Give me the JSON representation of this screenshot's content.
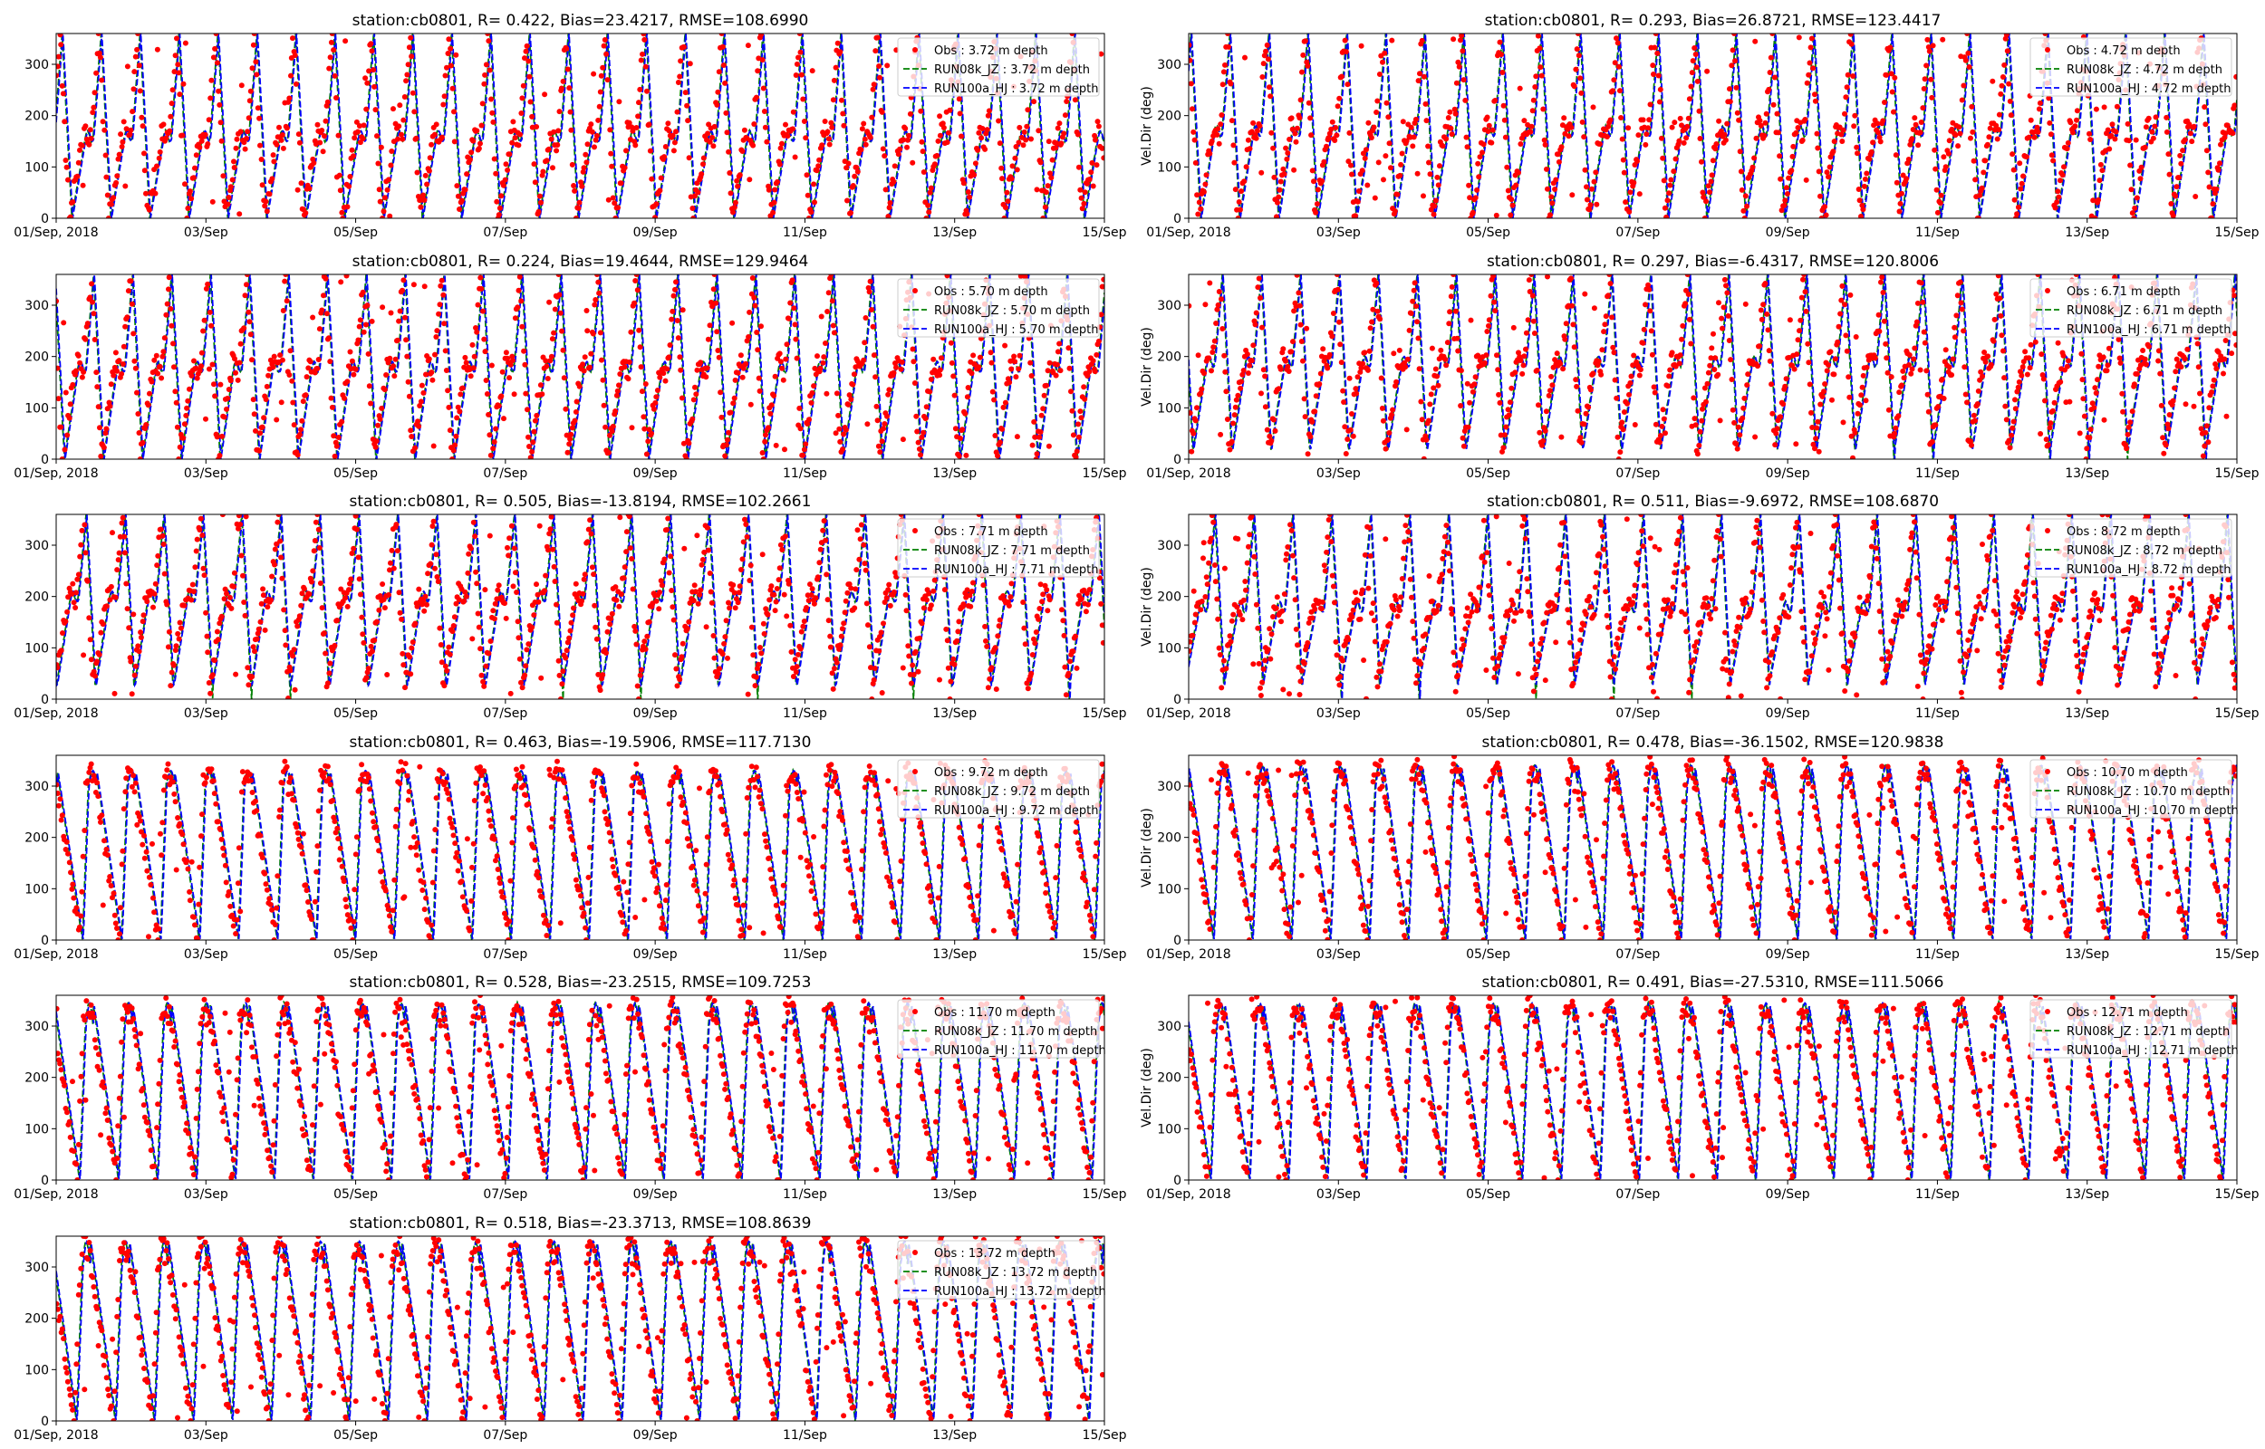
{
  "chart_data": {
    "type": "line",
    "figure": {
      "x_tick_labels": [
        "01/Sep, 2018",
        "03/Sep",
        "05/Sep",
        "07/Sep",
        "09/Sep",
        "11/Sep",
        "13/Sep",
        "15/Sep"
      ],
      "x_tick_days": [
        0,
        2,
        4,
        6,
        8,
        10,
        12,
        14
      ],
      "xlim_days": [
        0,
        14
      ],
      "ylim": [
        0,
        360
      ],
      "y_ticks": [
        0,
        100,
        200,
        300
      ],
      "legend_position": "upper right",
      "grid": false,
      "colors": {
        "obs": "#ff0000",
        "run08k": "#008000",
        "run100a": "#0000ff"
      }
    },
    "series_style": [
      {
        "key": "obs",
        "marker": "dot",
        "color": "#ff0000"
      },
      {
        "key": "run08k",
        "line": "dashed",
        "color": "#008000"
      },
      {
        "key": "run100a",
        "line": "dashed",
        "color": "#0000ff"
      }
    ],
    "panels": [
      {
        "title": "station:cb0801, R= 0.422, Bias=23.4217, RMSE=108.6990",
        "ylabel": "",
        "legend": [
          "Obs : 3.72 m depth",
          "RUN08k_JZ : 3.72 m depth",
          "RUN100a_HJ : 3.72 m depth"
        ],
        "pattern": {
          "period_days": 0.52,
          "phase": 0.3,
          "floor": 0,
          "hump": 160,
          "rise": true
        }
      },
      {
        "title": "station:cb0801, R= 0.293, Bias=26.8721, RMSE=123.4417",
        "ylabel": "Vel.Dir (deg)",
        "legend": [
          "Obs : 4.72 m depth",
          "RUN08k_JZ : 4.72 m depth",
          "RUN100a_HJ : 4.72 m depth"
        ],
        "pattern": {
          "period_days": 0.52,
          "phase": 0.35,
          "floor": 0,
          "hump": 170,
          "rise": true
        }
      },
      {
        "title": "station:cb0801, R= 0.224, Bias=19.4644, RMSE=129.9464",
        "ylabel": "",
        "legend": [
          "Obs : 5.70 m depth",
          "RUN08k_JZ : 5.70 m depth",
          "RUN100a_HJ : 5.70 m depth"
        ],
        "pattern": {
          "period_days": 0.52,
          "phase": 0.4,
          "floor": 0,
          "hump": 180,
          "rise": true
        }
      },
      {
        "title": "station:cb0801, R= 0.297, Bias=-6.4317, RMSE=120.8006",
        "ylabel": "Vel.Dir (deg)",
        "legend": [
          "Obs : 6.71 m depth",
          "RUN08k_JZ : 6.71 m depth",
          "RUN100a_HJ : 6.71 m depth"
        ],
        "pattern": {
          "period_days": 0.52,
          "phase": 0.45,
          "floor": 20,
          "hump": 190,
          "rise": true
        }
      },
      {
        "title": "station:cb0801, R= 0.505, Bias=-13.8194, RMSE=102.2661",
        "ylabel": "",
        "legend": [
          "Obs : 7.71 m depth",
          "RUN08k_JZ : 7.71 m depth",
          "RUN100a_HJ : 7.71 m depth"
        ],
        "pattern": {
          "period_days": 0.52,
          "phase": 0.5,
          "floor": 30,
          "hump": 200,
          "rise": true
        }
      },
      {
        "title": "station:cb0801, R= 0.511, Bias=-9.6972, RMSE=108.6870",
        "ylabel": "Vel.Dir (deg)",
        "legend": [
          "Obs : 8.72 m depth",
          "RUN08k_JZ : 8.72 m depth",
          "RUN100a_HJ : 8.72 m depth"
        ],
        "pattern": {
          "period_days": 0.52,
          "phase": 0.55,
          "floor": 40,
          "hump": 180,
          "rise": true
        }
      },
      {
        "title": "station:cb0801, R= 0.463, Bias=-19.5906, RMSE=117.7130",
        "ylabel": "",
        "legend": [
          "Obs : 9.72 m depth",
          "RUN08k_JZ : 9.72 m depth",
          "RUN100a_HJ : 9.72 m depth"
        ],
        "pattern": {
          "period_days": 0.52,
          "phase": 0.6,
          "floor": 0,
          "hump": 330,
          "rise": false
        }
      },
      {
        "title": "station:cb0801, R= 0.478, Bias=-36.1502, RMSE=120.9838",
        "ylabel": "Vel.Dir (deg)",
        "legend": [
          "Obs : 10.70 m depth",
          "RUN08k_JZ : 10.70 m depth",
          "RUN100a_HJ : 10.70 m depth"
        ],
        "pattern": {
          "period_days": 0.52,
          "phase": 0.62,
          "floor": 0,
          "hump": 340,
          "rise": false
        }
      },
      {
        "title": "station:cb0801, R= 0.528, Bias=-23.2515, RMSE=109.7253",
        "ylabel": "",
        "legend": [
          "Obs : 11.70 m depth",
          "RUN08k_JZ : 11.70 m depth",
          "RUN100a_HJ : 11.70 m depth"
        ],
        "pattern": {
          "period_days": 0.52,
          "phase": 0.64,
          "floor": 0,
          "hump": 345,
          "rise": false
        }
      },
      {
        "title": "station:cb0801, R= 0.491, Bias=-27.5310, RMSE=111.5066",
        "ylabel": "Vel.Dir (deg)",
        "legend": [
          "Obs : 12.71 m depth",
          "RUN08k_JZ : 12.71 m depth",
          "RUN100a_HJ : 12.71 m depth"
        ],
        "pattern": {
          "period_days": 0.52,
          "phase": 0.66,
          "floor": 0,
          "hump": 345,
          "rise": false
        }
      },
      {
        "title": "station:cb0801, R= 0.518, Bias=-23.3713, RMSE=108.8639",
        "ylabel": "",
        "legend": [
          "Obs : 13.72 m depth",
          "RUN08k_JZ : 13.72 m depth",
          "RUN100a_HJ : 13.72 m depth"
        ],
        "pattern": {
          "period_days": 0.52,
          "phase": 0.68,
          "floor": 0,
          "hump": 350,
          "rise": false
        }
      }
    ]
  }
}
